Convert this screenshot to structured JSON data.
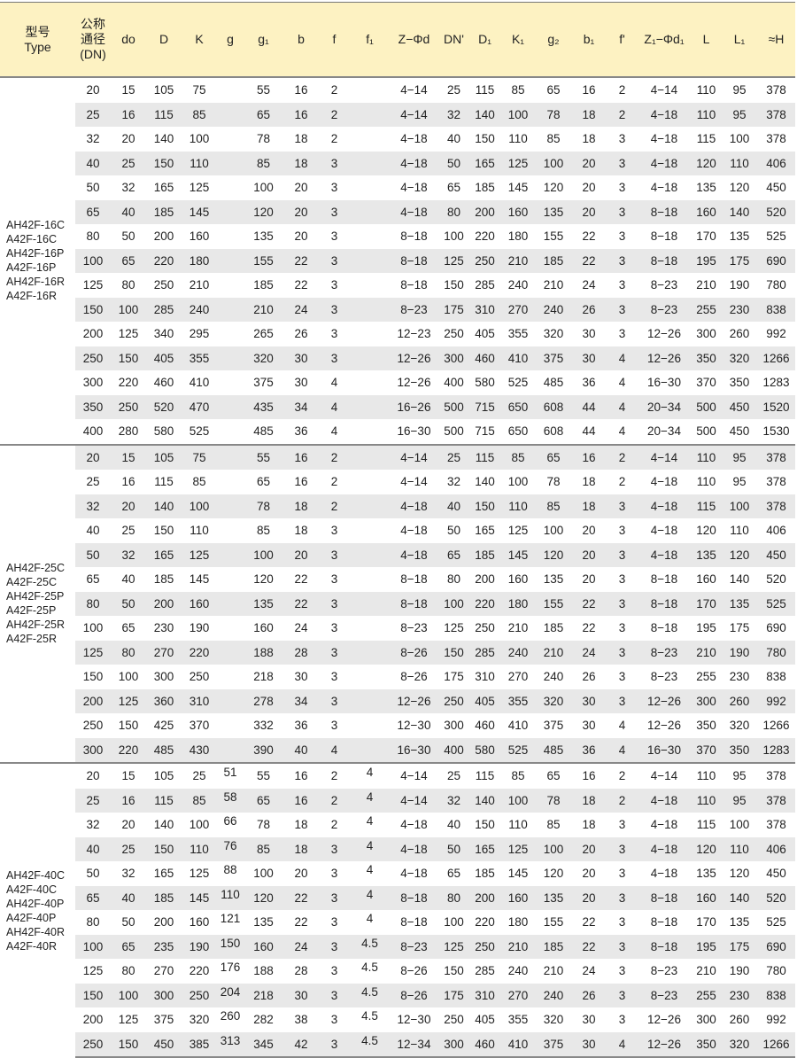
{
  "colors": {
    "header_bg": "#fdf2c2",
    "stripe": "#e8e8e8",
    "rule": "#888888"
  },
  "headers": [
    "型号\nType",
    "公称\n通径\n(DN)",
    "do",
    "D",
    "K",
    "g",
    "g₁",
    "b",
    "f",
    "f₁",
    "Z−Φd",
    "DN'",
    "D₁",
    "K₁",
    "g₂",
    "b₁",
    "f'",
    "Z₁−Φd₁",
    "L",
    "L₁",
    "≈H"
  ],
  "sections": [
    {
      "types": [
        "AH42F-16C",
        "A42F-16C",
        "AH42F-16P",
        "A42F-16P",
        "AH42F-16R",
        "A42F-16R"
      ],
      "rows": [
        [
          "20",
          "15",
          "105",
          "75",
          "",
          "55",
          "16",
          "2",
          "",
          "4−14",
          "25",
          "115",
          "85",
          "65",
          "16",
          "2",
          "4−14",
          "110",
          "95",
          "378"
        ],
        [
          "25",
          "16",
          "115",
          "85",
          "",
          "65",
          "16",
          "2",
          "",
          "4−14",
          "32",
          "140",
          "100",
          "78",
          "18",
          "2",
          "4−18",
          "110",
          "95",
          "378"
        ],
        [
          "32",
          "20",
          "140",
          "100",
          "",
          "78",
          "18",
          "2",
          "",
          "4−18",
          "40",
          "150",
          "110",
          "85",
          "18",
          "3",
          "4−18",
          "115",
          "100",
          "378"
        ],
        [
          "40",
          "25",
          "150",
          "110",
          "",
          "85",
          "18",
          "3",
          "",
          "4−18",
          "50",
          "165",
          "125",
          "100",
          "20",
          "3",
          "4−18",
          "120",
          "110",
          "406"
        ],
        [
          "50",
          "32",
          "165",
          "125",
          "",
          "100",
          "20",
          "3",
          "",
          "4−18",
          "65",
          "185",
          "145",
          "120",
          "20",
          "3",
          "4−18",
          "135",
          "120",
          "450"
        ],
        [
          "65",
          "40",
          "185",
          "145",
          "",
          "120",
          "20",
          "3",
          "",
          "4−18",
          "80",
          "200",
          "160",
          "135",
          "20",
          "3",
          "8−18",
          "160",
          "140",
          "520"
        ],
        [
          "80",
          "50",
          "200",
          "160",
          "",
          "135",
          "20",
          "3",
          "",
          "8−18",
          "100",
          "220",
          "180",
          "155",
          "22",
          "3",
          "8−18",
          "170",
          "135",
          "525"
        ],
        [
          "100",
          "65",
          "220",
          "180",
          "",
          "155",
          "22",
          "3",
          "",
          "8−18",
          "125",
          "250",
          "210",
          "185",
          "22",
          "3",
          "8−18",
          "195",
          "175",
          "690"
        ],
        [
          "125",
          "80",
          "250",
          "210",
          "",
          "185",
          "22",
          "3",
          "",
          "8−18",
          "150",
          "285",
          "240",
          "210",
          "24",
          "3",
          "8−23",
          "210",
          "190",
          "780"
        ],
        [
          "150",
          "100",
          "285",
          "240",
          "",
          "210",
          "24",
          "3",
          "",
          "8−23",
          "175",
          "310",
          "270",
          "240",
          "26",
          "3",
          "8−23",
          "255",
          "230",
          "838"
        ],
        [
          "200",
          "125",
          "340",
          "295",
          "",
          "265",
          "26",
          "3",
          "",
          "12−23",
          "250",
          "405",
          "355",
          "320",
          "30",
          "3",
          "12−26",
          "300",
          "260",
          "992"
        ],
        [
          "250",
          "150",
          "405",
          "355",
          "",
          "320",
          "30",
          "3",
          "",
          "12−26",
          "300",
          "460",
          "410",
          "375",
          "30",
          "4",
          "12−26",
          "350",
          "320",
          "1266"
        ],
        [
          "300",
          "220",
          "460",
          "410",
          "",
          "375",
          "30",
          "4",
          "",
          "12−26",
          "400",
          "580",
          "525",
          "485",
          "36",
          "4",
          "16−30",
          "370",
          "350",
          "1283"
        ],
        [
          "350",
          "250",
          "520",
          "470",
          "",
          "435",
          "34",
          "4",
          "",
          "16−26",
          "500",
          "715",
          "650",
          "608",
          "44",
          "4",
          "20−34",
          "500",
          "450",
          "1520"
        ],
        [
          "400",
          "280",
          "580",
          "525",
          "",
          "485",
          "36",
          "4",
          "",
          "16−30",
          "500",
          "715",
          "650",
          "608",
          "44",
          "4",
          "20−34",
          "500",
          "450",
          "1530"
        ]
      ]
    },
    {
      "types": [
        "AH42F-25C",
        "A42F-25C",
        "AH42F-25P",
        "A42F-25P",
        "AH42F-25R",
        "A42F-25R"
      ],
      "rows": [
        [
          "20",
          "15",
          "105",
          "75",
          "",
          "55",
          "16",
          "2",
          "",
          "4−14",
          "25",
          "115",
          "85",
          "65",
          "16",
          "2",
          "4−14",
          "110",
          "95",
          "378"
        ],
        [
          "25",
          "16",
          "115",
          "85",
          "",
          "65",
          "16",
          "2",
          "",
          "4−14",
          "32",
          "140",
          "100",
          "78",
          "18",
          "2",
          "4−18",
          "110",
          "95",
          "378"
        ],
        [
          "32",
          "20",
          "140",
          "100",
          "",
          "78",
          "18",
          "2",
          "",
          "4−18",
          "40",
          "150",
          "110",
          "85",
          "18",
          "3",
          "4−18",
          "115",
          "100",
          "378"
        ],
        [
          "40",
          "25",
          "150",
          "110",
          "",
          "85",
          "18",
          "3",
          "",
          "4−18",
          "50",
          "165",
          "125",
          "100",
          "20",
          "3",
          "4−18",
          "120",
          "110",
          "406"
        ],
        [
          "50",
          "32",
          "165",
          "125",
          "",
          "100",
          "20",
          "3",
          "",
          "4−18",
          "65",
          "185",
          "145",
          "120",
          "20",
          "3",
          "4−18",
          "135",
          "120",
          "450"
        ],
        [
          "65",
          "40",
          "185",
          "145",
          "",
          "120",
          "22",
          "3",
          "",
          "8−18",
          "80",
          "200",
          "160",
          "135",
          "20",
          "3",
          "8−18",
          "160",
          "140",
          "520"
        ],
        [
          "80",
          "50",
          "200",
          "160",
          "",
          "135",
          "22",
          "3",
          "",
          "8−18",
          "100",
          "220",
          "180",
          "155",
          "22",
          "3",
          "8−18",
          "170",
          "135",
          "525"
        ],
        [
          "100",
          "65",
          "230",
          "190",
          "",
          "160",
          "24",
          "3",
          "",
          "8−23",
          "125",
          "250",
          "210",
          "185",
          "22",
          "3",
          "8−18",
          "195",
          "175",
          "690"
        ],
        [
          "125",
          "80",
          "270",
          "220",
          "",
          "188",
          "28",
          "3",
          "",
          "8−26",
          "150",
          "285",
          "240",
          "210",
          "24",
          "3",
          "8−23",
          "210",
          "190",
          "780"
        ],
        [
          "150",
          "100",
          "300",
          "250",
          "",
          "218",
          "30",
          "3",
          "",
          "8−26",
          "175",
          "310",
          "270",
          "240",
          "26",
          "3",
          "8−23",
          "255",
          "230",
          "838"
        ],
        [
          "200",
          "125",
          "360",
          "310",
          "",
          "278",
          "34",
          "3",
          "",
          "12−26",
          "250",
          "405",
          "355",
          "320",
          "30",
          "3",
          "12−26",
          "300",
          "260",
          "992"
        ],
        [
          "250",
          "150",
          "425",
          "370",
          "",
          "332",
          "36",
          "3",
          "",
          "12−30",
          "300",
          "460",
          "410",
          "375",
          "30",
          "4",
          "12−26",
          "350",
          "320",
          "1266"
        ],
        [
          "300",
          "220",
          "485",
          "430",
          "",
          "390",
          "40",
          "4",
          "",
          "16−30",
          "400",
          "580",
          "525",
          "485",
          "36",
          "4",
          "16−30",
          "370",
          "350",
          "1283"
        ]
      ]
    },
    {
      "types": [
        "AH42F-40C",
        "A42F-40C",
        "AH42F-40P",
        "A42F-40P",
        "AH42F-40R",
        "A42F-40R"
      ],
      "rows": [
        [
          "20",
          "15",
          "105",
          "25",
          "51",
          "55",
          "16",
          "2",
          "4",
          "4−14",
          "25",
          "115",
          "85",
          "65",
          "16",
          "2",
          "4−14",
          "110",
          "95",
          "378"
        ],
        [
          "25",
          "16",
          "115",
          "85",
          "58",
          "65",
          "16",
          "2",
          "4",
          "4−14",
          "32",
          "140",
          "100",
          "78",
          "18",
          "2",
          "4−18",
          "110",
          "95",
          "378"
        ],
        [
          "32",
          "20",
          "140",
          "100",
          "66",
          "78",
          "18",
          "2",
          "4",
          "4−18",
          "40",
          "150",
          "110",
          "85",
          "18",
          "3",
          "4−18",
          "115",
          "100",
          "378"
        ],
        [
          "40",
          "25",
          "150",
          "110",
          "76",
          "85",
          "18",
          "3",
          "4",
          "4−18",
          "50",
          "165",
          "125",
          "100",
          "20",
          "3",
          "4−18",
          "120",
          "110",
          "406"
        ],
        [
          "50",
          "32",
          "165",
          "125",
          "88",
          "100",
          "20",
          "3",
          "4",
          "4−18",
          "65",
          "185",
          "145",
          "120",
          "20",
          "3",
          "4−18",
          "135",
          "120",
          "450"
        ],
        [
          "65",
          "40",
          "185",
          "145",
          "110",
          "120",
          "22",
          "3",
          "4",
          "8−18",
          "80",
          "200",
          "160",
          "135",
          "20",
          "3",
          "8−18",
          "160",
          "140",
          "520"
        ],
        [
          "80",
          "50",
          "200",
          "160",
          "121",
          "135",
          "22",
          "3",
          "4",
          "8−18",
          "100",
          "220",
          "180",
          "155",
          "22",
          "3",
          "8−18",
          "170",
          "135",
          "525"
        ],
        [
          "100",
          "65",
          "235",
          "190",
          "150",
          "160",
          "24",
          "3",
          "4.5",
          "8−23",
          "125",
          "250",
          "210",
          "185",
          "22",
          "3",
          "8−18",
          "195",
          "175",
          "690"
        ],
        [
          "125",
          "80",
          "270",
          "220",
          "176",
          "188",
          "28",
          "3",
          "4.5",
          "8−26",
          "150",
          "285",
          "240",
          "210",
          "24",
          "3",
          "8−23",
          "210",
          "190",
          "780"
        ],
        [
          "150",
          "100",
          "300",
          "250",
          "204",
          "218",
          "30",
          "3",
          "4.5",
          "8−26",
          "175",
          "310",
          "270",
          "240",
          "26",
          "3",
          "8−23",
          "255",
          "230",
          "838"
        ],
        [
          "200",
          "125",
          "375",
          "320",
          "260",
          "282",
          "38",
          "3",
          "4.5",
          "12−30",
          "250",
          "405",
          "355",
          "320",
          "30",
          "3",
          "12−26",
          "300",
          "260",
          "992"
        ],
        [
          "250",
          "150",
          "450",
          "385",
          "313",
          "345",
          "42",
          "3",
          "4.5",
          "12−34",
          "300",
          "460",
          "410",
          "375",
          "30",
          "4",
          "12−26",
          "350",
          "320",
          "1266"
        ]
      ]
    }
  ]
}
